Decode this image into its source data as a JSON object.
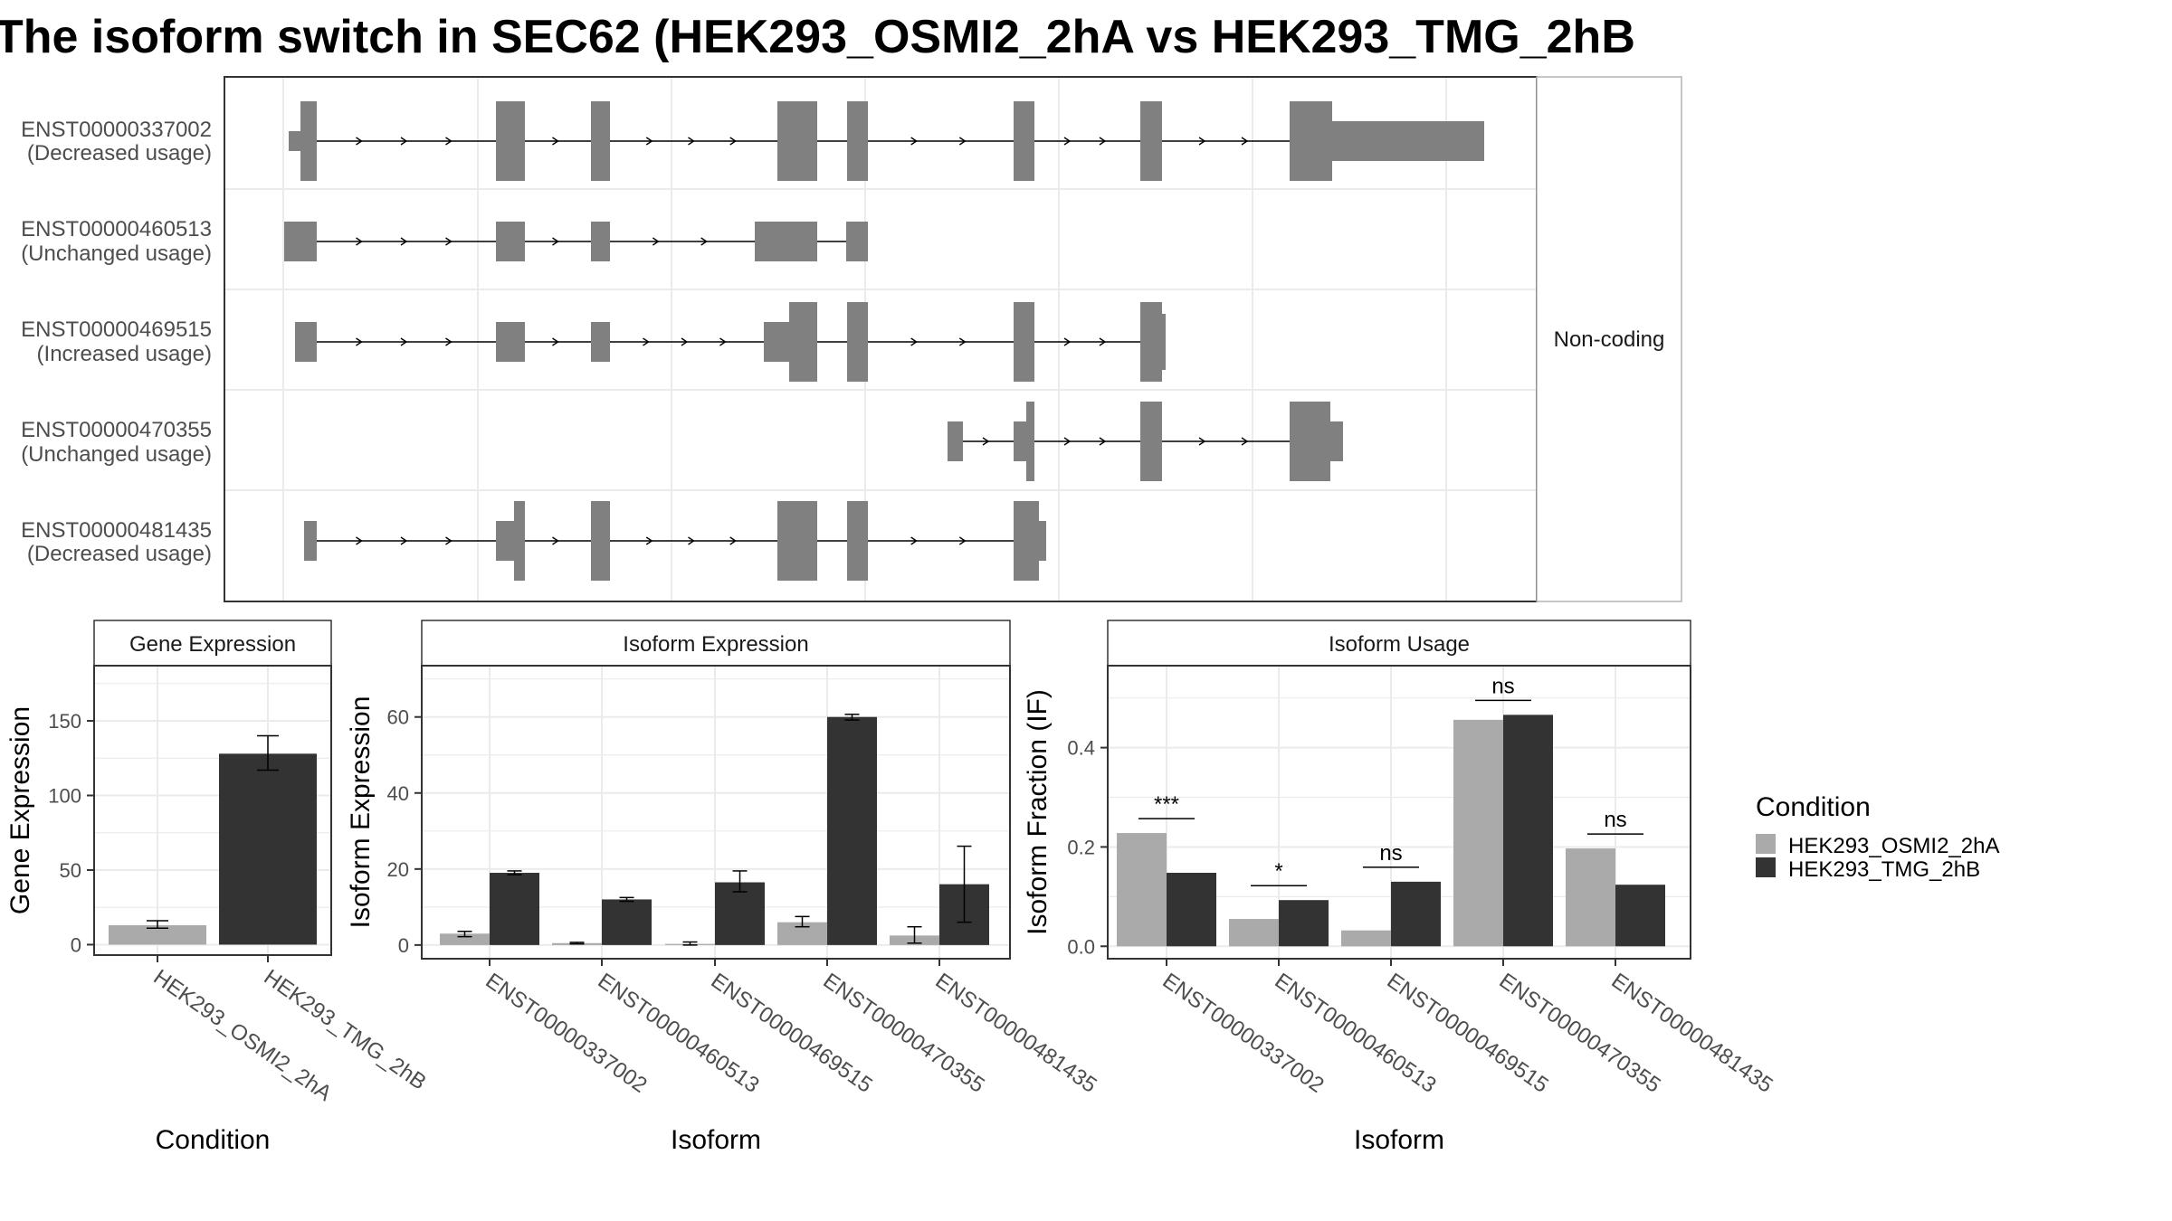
{
  "title": "The isoform switch in SEC62 (HEK293_OSMI2_2hA vs HEK293_TMG_2hB",
  "colors": {
    "condA": "#aaaaaa",
    "condB": "#333333",
    "exon": "#808080",
    "grid": "#ebebeb"
  },
  "structure": {
    "facet_label": "Non-coding",
    "isoforms": [
      {
        "id": "ENST00000337002",
        "usage": "(Decreased usage)"
      },
      {
        "id": "ENST00000460513",
        "usage": "(Unchanged usage)"
      },
      {
        "id": "ENST00000469515",
        "usage": "(Increased usage)"
      },
      {
        "id": "ENST00000470355",
        "usage": "(Unchanged usage)"
      },
      {
        "id": "ENST00000481435",
        "usage": "(Decreased usage)"
      }
    ]
  },
  "legend": {
    "title": "Condition",
    "items": [
      "HEK293_OSMI2_2hA",
      "HEK293_TMG_2hB"
    ]
  },
  "chart_data": [
    {
      "type": "bar",
      "title": "Gene Expression",
      "xlabel": "Condition",
      "ylabel": "Gene Expression",
      "categories": [
        "HEK293_OSMI2_2hA",
        "HEK293_TMG_2hB"
      ],
      "values": [
        13,
        128
      ],
      "errors": [
        [
          11,
          16
        ],
        [
          117,
          140
        ]
      ],
      "ylim": [
        -7,
        187
      ],
      "yticks": [
        0,
        50,
        100,
        150
      ]
    },
    {
      "type": "bar",
      "title": "Isoform Expression",
      "xlabel": "Isoform",
      "ylabel": "Isoform Expression",
      "categories": [
        "ENST00000337002",
        "ENST00000460513",
        "ENST00000469515",
        "ENST00000470355",
        "ENST00000481435"
      ],
      "series": [
        {
          "name": "HEK293_OSMI2_2hA",
          "values": [
            3,
            0.5,
            0.3,
            6,
            2.5
          ],
          "errors": [
            [
              2.2,
              3.6
            ],
            [
              0.3,
              0.7
            ],
            [
              0,
              0.8
            ],
            [
              4.8,
              7.5
            ],
            [
              0.5,
              4.8
            ]
          ]
        },
        {
          "name": "HEK293_TMG_2hB",
          "values": [
            19,
            12,
            16.5,
            60,
            16
          ],
          "errors": [
            [
              18.5,
              19.5
            ],
            [
              11.5,
              12.5
            ],
            [
              14,
              19.5
            ],
            [
              59.2,
              60.7
            ],
            [
              6,
              26
            ]
          ]
        }
      ],
      "ylim": [
        -3.6,
        73.5
      ],
      "yticks": [
        0,
        20,
        40,
        60
      ]
    },
    {
      "type": "bar",
      "title": "Isoform Usage",
      "xlabel": "Isoform",
      "ylabel": "Isoform Fraction (IF)",
      "categories": [
        "ENST00000337002",
        "ENST00000460513",
        "ENST00000469515",
        "ENST00000470355",
        "ENST00000481435"
      ],
      "series": [
        {
          "name": "HEK293_OSMI2_2hA",
          "values": [
            0.228,
            0.055,
            0.032,
            0.456,
            0.197
          ]
        },
        {
          "name": "HEK293_TMG_2hB",
          "values": [
            0.148,
            0.093,
            0.13,
            0.466,
            0.124
          ]
        }
      ],
      "significance": [
        "***",
        "*",
        "ns",
        "ns",
        "ns"
      ],
      "ylim": [
        -0.025,
        0.565
      ],
      "yticks": [
        0.0,
        0.2,
        0.4
      ],
      "ytick_labels": [
        "0.0",
        "0.2",
        "0.4"
      ]
    }
  ]
}
